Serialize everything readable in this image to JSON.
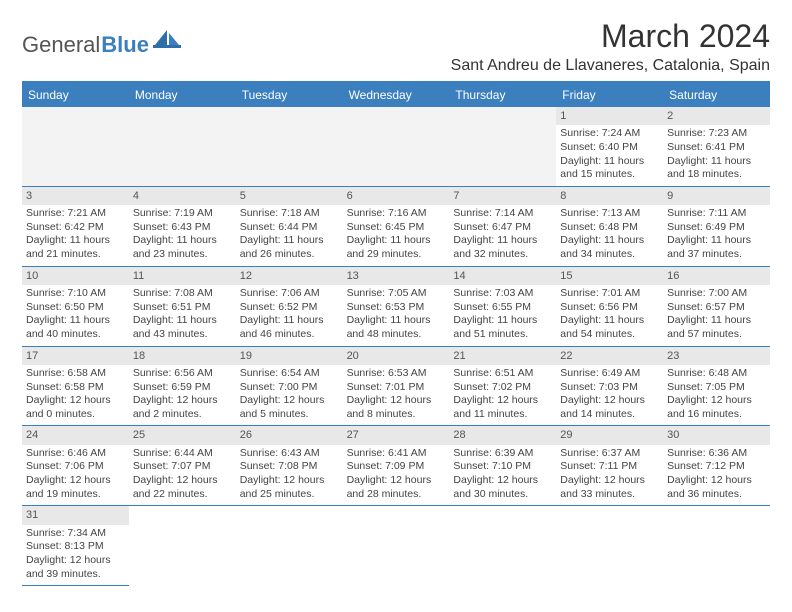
{
  "logo": {
    "part1": "General",
    "part2": "Blue"
  },
  "title": "March 2024",
  "subtitle": "Sant Andreu de Llavaneres, Catalonia, Spain",
  "header_bg": "#3b7fbf",
  "days": [
    "Sunday",
    "Monday",
    "Tuesday",
    "Wednesday",
    "Thursday",
    "Friday",
    "Saturday"
  ],
  "blanks_before": 5,
  "cells": [
    {
      "n": "1",
      "sr": "7:24 AM",
      "ss": "6:40 PM",
      "dl": "11 hours and 15 minutes."
    },
    {
      "n": "2",
      "sr": "7:23 AM",
      "ss": "6:41 PM",
      "dl": "11 hours and 18 minutes."
    },
    {
      "n": "3",
      "sr": "7:21 AM",
      "ss": "6:42 PM",
      "dl": "11 hours and 21 minutes."
    },
    {
      "n": "4",
      "sr": "7:19 AM",
      "ss": "6:43 PM",
      "dl": "11 hours and 23 minutes."
    },
    {
      "n": "5",
      "sr": "7:18 AM",
      "ss": "6:44 PM",
      "dl": "11 hours and 26 minutes."
    },
    {
      "n": "6",
      "sr": "7:16 AM",
      "ss": "6:45 PM",
      "dl": "11 hours and 29 minutes."
    },
    {
      "n": "7",
      "sr": "7:14 AM",
      "ss": "6:47 PM",
      "dl": "11 hours and 32 minutes."
    },
    {
      "n": "8",
      "sr": "7:13 AM",
      "ss": "6:48 PM",
      "dl": "11 hours and 34 minutes."
    },
    {
      "n": "9",
      "sr": "7:11 AM",
      "ss": "6:49 PM",
      "dl": "11 hours and 37 minutes."
    },
    {
      "n": "10",
      "sr": "7:10 AM",
      "ss": "6:50 PM",
      "dl": "11 hours and 40 minutes."
    },
    {
      "n": "11",
      "sr": "7:08 AM",
      "ss": "6:51 PM",
      "dl": "11 hours and 43 minutes."
    },
    {
      "n": "12",
      "sr": "7:06 AM",
      "ss": "6:52 PM",
      "dl": "11 hours and 46 minutes."
    },
    {
      "n": "13",
      "sr": "7:05 AM",
      "ss": "6:53 PM",
      "dl": "11 hours and 48 minutes."
    },
    {
      "n": "14",
      "sr": "7:03 AM",
      "ss": "6:55 PM",
      "dl": "11 hours and 51 minutes."
    },
    {
      "n": "15",
      "sr": "7:01 AM",
      "ss": "6:56 PM",
      "dl": "11 hours and 54 minutes."
    },
    {
      "n": "16",
      "sr": "7:00 AM",
      "ss": "6:57 PM",
      "dl": "11 hours and 57 minutes."
    },
    {
      "n": "17",
      "sr": "6:58 AM",
      "ss": "6:58 PM",
      "dl": "12 hours and 0 minutes."
    },
    {
      "n": "18",
      "sr": "6:56 AM",
      "ss": "6:59 PM",
      "dl": "12 hours and 2 minutes."
    },
    {
      "n": "19",
      "sr": "6:54 AM",
      "ss": "7:00 PM",
      "dl": "12 hours and 5 minutes."
    },
    {
      "n": "20",
      "sr": "6:53 AM",
      "ss": "7:01 PM",
      "dl": "12 hours and 8 minutes."
    },
    {
      "n": "21",
      "sr": "6:51 AM",
      "ss": "7:02 PM",
      "dl": "12 hours and 11 minutes."
    },
    {
      "n": "22",
      "sr": "6:49 AM",
      "ss": "7:03 PM",
      "dl": "12 hours and 14 minutes."
    },
    {
      "n": "23",
      "sr": "6:48 AM",
      "ss": "7:05 PM",
      "dl": "12 hours and 16 minutes."
    },
    {
      "n": "24",
      "sr": "6:46 AM",
      "ss": "7:06 PM",
      "dl": "12 hours and 19 minutes."
    },
    {
      "n": "25",
      "sr": "6:44 AM",
      "ss": "7:07 PM",
      "dl": "12 hours and 22 minutes."
    },
    {
      "n": "26",
      "sr": "6:43 AM",
      "ss": "7:08 PM",
      "dl": "12 hours and 25 minutes."
    },
    {
      "n": "27",
      "sr": "6:41 AM",
      "ss": "7:09 PM",
      "dl": "12 hours and 28 minutes."
    },
    {
      "n": "28",
      "sr": "6:39 AM",
      "ss": "7:10 PM",
      "dl": "12 hours and 30 minutes."
    },
    {
      "n": "29",
      "sr": "6:37 AM",
      "ss": "7:11 PM",
      "dl": "12 hours and 33 minutes."
    },
    {
      "n": "30",
      "sr": "6:36 AM",
      "ss": "7:12 PM",
      "dl": "12 hours and 36 minutes."
    },
    {
      "n": "31",
      "sr": "7:34 AM",
      "ss": "8:13 PM",
      "dl": "12 hours and 39 minutes."
    }
  ],
  "labels": {
    "sunrise": "Sunrise: ",
    "sunset": "Sunset: ",
    "daylight": "Daylight: "
  }
}
